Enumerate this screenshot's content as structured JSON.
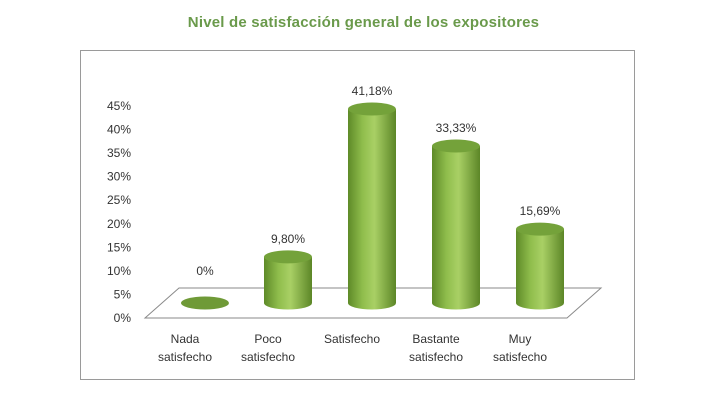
{
  "title": "Nivel de satisfacción general de los expositores",
  "chart_data": {
    "type": "bar",
    "title": "Nivel de satisfacción general de los expositores",
    "categories": [
      [
        "Nada",
        "satisfecho"
      ],
      [
        "Poco",
        "satisfecho"
      ],
      [
        "Satisfecho"
      ],
      [
        "Bastante",
        "satisfecho"
      ],
      [
        "Muy",
        "satisfecho"
      ]
    ],
    "values": [
      0,
      9.8,
      41.18,
      33.33,
      15.69
    ],
    "data_labels": [
      "0%",
      "9,80%",
      "41,18%",
      "33,33%",
      "15,69%"
    ],
    "y_ticks": [
      "0%",
      "5%",
      "10%",
      "15%",
      "20%",
      "25%",
      "30%",
      "35%",
      "40%",
      "45%"
    ],
    "ylim": [
      0,
      45
    ],
    "style": "3d-cylinder",
    "colors": {
      "bar": "#8bb847",
      "bar_dark": "#5f8a2a",
      "bar_top": "#6f9a37",
      "title": "#6a9a4b"
    },
    "grid": false,
    "legend": "none"
  }
}
